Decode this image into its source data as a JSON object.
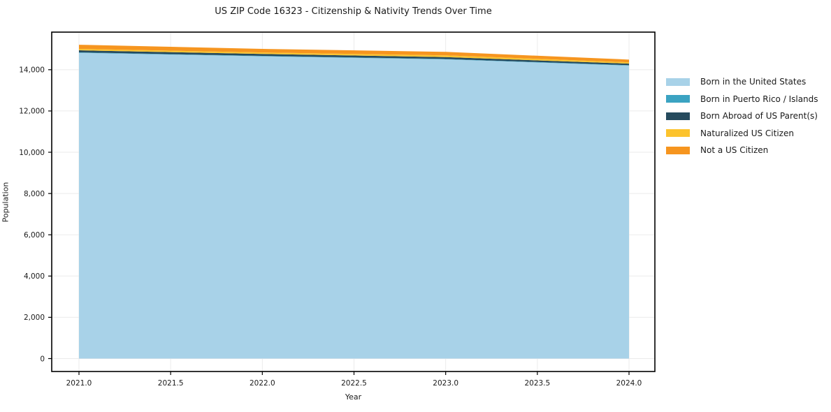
{
  "title": "US ZIP Code 16323 - Citizenship & Nativity Trends Over Time",
  "chart_data": {
    "type": "area",
    "stacked": true,
    "title": "US ZIP Code 16323 - Citizenship & Nativity Trends Over Time",
    "xlabel": "Year",
    "ylabel": "Population",
    "x": [
      2021,
      2022,
      2023,
      2024
    ],
    "series": [
      {
        "name": "Born in the United States",
        "color": "#a8d2e8",
        "values": [
          14820,
          14650,
          14500,
          14200
        ]
      },
      {
        "name": "Born in Puerto Rico / Islands",
        "color": "#3ba3c2",
        "values": [
          20,
          20,
          20,
          20
        ]
      },
      {
        "name": "Born Abroad of US Parent(s)",
        "color": "#264b5e",
        "values": [
          100,
          95,
          90,
          75
        ]
      },
      {
        "name": "Naturalized US Citizen",
        "color": "#fcc32d",
        "values": [
          70,
          70,
          85,
          65
        ]
      },
      {
        "name": "Not a US Citizen",
        "color": "#f6951f",
        "values": [
          200,
          175,
          170,
          130
        ]
      }
    ],
    "totals": [
      15210,
      15010,
      14865,
      14490
    ],
    "xticks": {
      "values": [
        2021.0,
        2021.5,
        2022.0,
        2022.5,
        2023.0,
        2023.5,
        2024.0
      ],
      "labels": [
        "2021.0",
        "2021.5",
        "2022.0",
        "2022.5",
        "2023.0",
        "2023.5",
        "2024.0"
      ]
    },
    "yticks": {
      "values": [
        0,
        2000,
        4000,
        6000,
        8000,
        10000,
        12000,
        14000
      ],
      "labels": [
        "0",
        "2,000",
        "4,000",
        "6,000",
        "8,000",
        "10,000",
        "12,000",
        "14,000"
      ]
    },
    "xlim": [
      2020.85,
      2024.14
    ],
    "ylim": [
      -650,
      15800
    ],
    "grid": true,
    "legend_position": "right"
  },
  "colors": {
    "background": "#ffffff",
    "grid": "#ebebeb",
    "spine": "#000000",
    "text": "#1a1a1a"
  }
}
